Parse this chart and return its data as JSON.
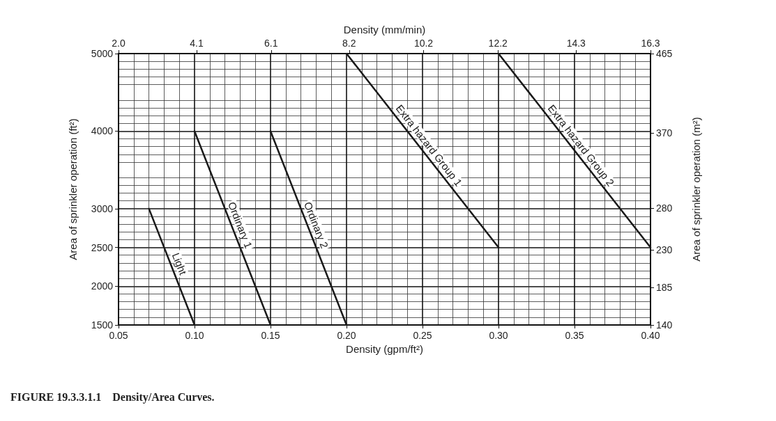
{
  "chart_data": {
    "type": "line",
    "title": "FIGURE 19.3.3.1.1    Density/Area Curves.",
    "xlabel": "Density (gpm/ft²)",
    "x2label": "Density (mm/min)",
    "ylabel": "Area of sprinkler operation (ft²)",
    "y2label": "Area of sprinkler operation (m²)",
    "xlim": [
      0.05,
      0.4
    ],
    "xticks": [
      {
        "value": 0.05,
        "label": "0.05"
      },
      {
        "value": 0.1,
        "label": "0.10"
      },
      {
        "value": 0.15,
        "label": "0.15"
      },
      {
        "value": 0.2,
        "label": "0.20"
      },
      {
        "value": 0.25,
        "label": "0.25"
      },
      {
        "value": 0.3,
        "label": "0.30"
      },
      {
        "value": 0.35,
        "label": "0.35"
      },
      {
        "value": 0.4,
        "label": "0.40"
      }
    ],
    "x2lim": [
      2.0,
      16.3
    ],
    "x2ticks": [
      {
        "value": 2.0,
        "label": "2.0"
      },
      4.1,
      6.1,
      8.2,
      10.2,
      12.2,
      14.3,
      16.3
    ],
    "ylim": [
      1500,
      5000
    ],
    "yticks": [
      1500,
      2000,
      2500,
      3000,
      4000,
      5000
    ],
    "y2lim": [
      140,
      465
    ],
    "y2ticks": [
      140,
      185,
      230,
      280,
      370,
      465
    ],
    "grid": true,
    "legend": false,
    "marker": "none",
    "line_style": "solid",
    "series": [
      {
        "name": "Light",
        "color": "#1a1a1a",
        "x": [
          0.07,
          0.1
        ],
        "values": [
          3000,
          1500
        ]
      },
      {
        "name": "Ordinary 1",
        "color": "#1a1a1a",
        "x": [
          0.1,
          0.15
        ],
        "values": [
          4000,
          1500
        ]
      },
      {
        "name": "Ordinary 2",
        "color": "#1a1a1a",
        "x": [
          0.15,
          0.2
        ],
        "values": [
          4000,
          1500
        ]
      },
      {
        "name": "Extra hazard Group 1",
        "color": "#1a1a1a",
        "x": [
          0.2,
          0.3
        ],
        "values": [
          5000,
          2500
        ]
      },
      {
        "name": "Extra hazard Group 2",
        "color": "#1a1a1a",
        "x": [
          0.3,
          0.4
        ],
        "values": [
          5000,
          2500
        ]
      }
    ]
  }
}
